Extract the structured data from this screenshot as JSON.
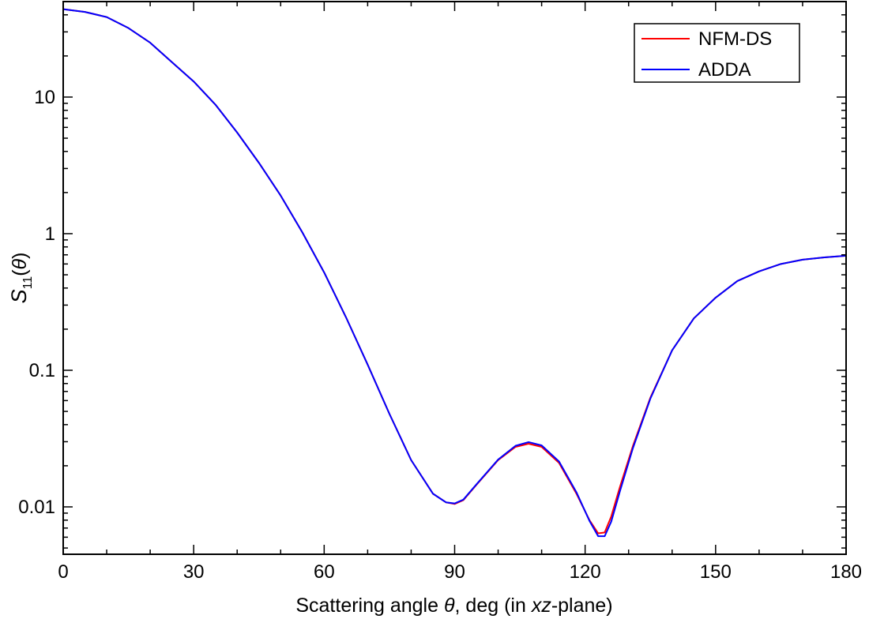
{
  "chart_data": {
    "type": "line",
    "title": "",
    "xlabel_parts": [
      "Scattering angle ",
      "θ",
      ", deg (in ",
      "xz",
      "-plane)"
    ],
    "ylabel_parts": [
      "S",
      "11",
      "(",
      "θ",
      ")"
    ],
    "xlim": [
      0,
      180
    ],
    "ylim": [
      0.0045,
      50
    ],
    "yscale": "log",
    "x_ticks": [
      0,
      30,
      60,
      90,
      120,
      150,
      180
    ],
    "x_tick_labels": [
      "0",
      "30",
      "60",
      "90",
      "120",
      "150",
      "180"
    ],
    "y_ticks": [
      0.01,
      0.1,
      1,
      10
    ],
    "y_tick_labels": [
      "0.01",
      "0.1",
      "1",
      "10"
    ],
    "grid": false,
    "legend_position": "top-right",
    "series": [
      {
        "name": "NFM-DS",
        "color": "#ff0000",
        "points": [
          [
            0,
            44
          ],
          [
            5,
            42
          ],
          [
            10,
            38.5
          ],
          [
            15,
            32
          ],
          [
            20,
            25
          ],
          [
            25,
            18
          ],
          [
            30,
            13
          ],
          [
            35,
            8.8
          ],
          [
            40,
            5.5
          ],
          [
            45,
            3.3
          ],
          [
            50,
            1.9
          ],
          [
            55,
            1.02
          ],
          [
            60,
            0.52
          ],
          [
            65,
            0.245
          ],
          [
            70,
            0.11
          ],
          [
            75,
            0.048
          ],
          [
            80,
            0.022
          ],
          [
            85,
            0.0125
          ],
          [
            88,
            0.0108
          ],
          [
            90,
            0.0105
          ],
          [
            92,
            0.0112
          ],
          [
            95,
            0.0145
          ],
          [
            100,
            0.022
          ],
          [
            104,
            0.0275
          ],
          [
            107,
            0.029
          ],
          [
            110,
            0.0275
          ],
          [
            114,
            0.021
          ],
          [
            118,
            0.0125
          ],
          [
            121,
            0.008
          ],
          [
            123,
            0.0064
          ],
          [
            124.5,
            0.0065
          ],
          [
            126,
            0.0085
          ],
          [
            128,
            0.014
          ],
          [
            131,
            0.028
          ],
          [
            135,
            0.063
          ],
          [
            140,
            0.14
          ],
          [
            145,
            0.24
          ],
          [
            150,
            0.34
          ],
          [
            155,
            0.45
          ],
          [
            160,
            0.53
          ],
          [
            165,
            0.6
          ],
          [
            170,
            0.645
          ],
          [
            175,
            0.67
          ],
          [
            180,
            0.69
          ]
        ]
      },
      {
        "name": "ADDA",
        "color": "#0000ff",
        "points": [
          [
            0,
            44
          ],
          [
            5,
            42
          ],
          [
            10,
            38.5
          ],
          [
            15,
            32
          ],
          [
            20,
            25
          ],
          [
            25,
            18
          ],
          [
            30,
            13
          ],
          [
            35,
            8.8
          ],
          [
            40,
            5.5
          ],
          [
            45,
            3.3
          ],
          [
            50,
            1.9
          ],
          [
            55,
            1.02
          ],
          [
            60,
            0.52
          ],
          [
            65,
            0.245
          ],
          [
            70,
            0.11
          ],
          [
            75,
            0.048
          ],
          [
            80,
            0.022
          ],
          [
            85,
            0.0125
          ],
          [
            88,
            0.0108
          ],
          [
            90,
            0.0106
          ],
          [
            92,
            0.0113
          ],
          [
            95,
            0.0146
          ],
          [
            100,
            0.0222
          ],
          [
            104,
            0.028
          ],
          [
            107,
            0.0298
          ],
          [
            110,
            0.0282
          ],
          [
            114,
            0.0215
          ],
          [
            118,
            0.0128
          ],
          [
            121,
            0.0079
          ],
          [
            123,
            0.0061
          ],
          [
            124.5,
            0.0061
          ],
          [
            126,
            0.0078
          ],
          [
            128,
            0.013
          ],
          [
            131,
            0.027
          ],
          [
            135,
            0.062
          ],
          [
            140,
            0.14
          ],
          [
            145,
            0.24
          ],
          [
            150,
            0.34
          ],
          [
            155,
            0.45
          ],
          [
            160,
            0.53
          ],
          [
            165,
            0.6
          ],
          [
            170,
            0.645
          ],
          [
            175,
            0.67
          ],
          [
            180,
            0.69
          ]
        ]
      }
    ]
  }
}
